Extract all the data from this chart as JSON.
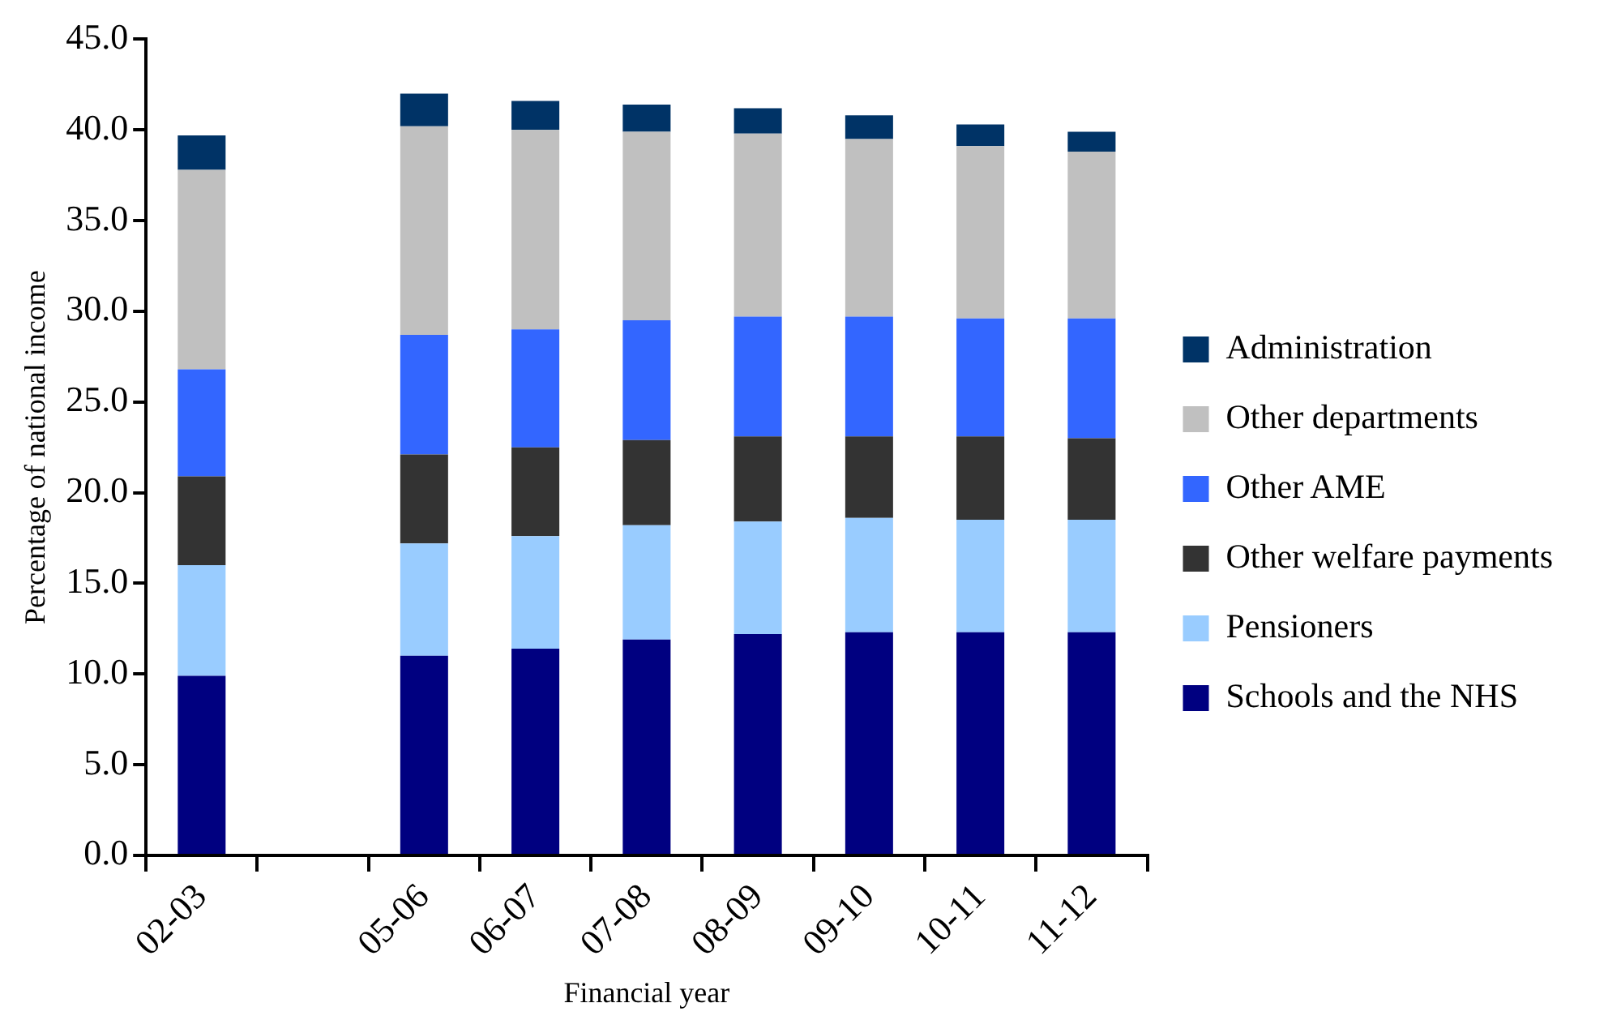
{
  "chart_data": {
    "type": "bar",
    "stacked": true,
    "xlabel": "Financial year",
    "ylabel": "Percentage of national income",
    "categories": [
      "02-03",
      null,
      "05-06",
      "06-07",
      "07-08",
      "08-09",
      "09-10",
      "10-11",
      "11-12"
    ],
    "series": [
      {
        "name": "Schools and the NHS",
        "color": "#000080",
        "values": [
          9.9,
          null,
          11.0,
          11.4,
          11.9,
          12.2,
          12.3,
          12.3,
          12.3
        ]
      },
      {
        "name": "Pensioners",
        "color": "#99ccff",
        "values": [
          6.1,
          null,
          6.2,
          6.2,
          6.3,
          6.2,
          6.3,
          6.2,
          6.2
        ]
      },
      {
        "name": "Other welfare payments",
        "color": "#333333",
        "values": [
          4.9,
          null,
          4.9,
          4.9,
          4.7,
          4.7,
          4.5,
          4.6,
          4.5
        ]
      },
      {
        "name": "Other AME",
        "color": "#3366ff",
        "values": [
          5.9,
          null,
          6.6,
          6.5,
          6.6,
          6.6,
          6.6,
          6.5,
          6.6
        ]
      },
      {
        "name": "Other departments",
        "color": "#c0c0c0",
        "values": [
          11.0,
          null,
          11.5,
          11.0,
          10.4,
          10.1,
          9.8,
          9.5,
          9.2
        ]
      },
      {
        "name": "Administration",
        "color": "#003366",
        "values": [
          1.9,
          null,
          1.8,
          1.6,
          1.5,
          1.4,
          1.3,
          1.2,
          1.1
        ]
      }
    ],
    "ylim": [
      0,
      45
    ],
    "yticks": [
      {
        "value": 0,
        "label": "0.0"
      },
      {
        "value": 5,
        "label": "5.0"
      },
      {
        "value": 10,
        "label": "10.0"
      },
      {
        "value": 15,
        "label": "15.0"
      },
      {
        "value": 20,
        "label": "20.0"
      },
      {
        "value": 25,
        "label": "25.0"
      },
      {
        "value": 30,
        "label": "30.0"
      },
      {
        "value": 35,
        "label": "35.0"
      },
      {
        "value": 40,
        "label": "40.0"
      },
      {
        "value": 45,
        "label": "45.0"
      }
    ],
    "grid": false,
    "legend": "right"
  }
}
